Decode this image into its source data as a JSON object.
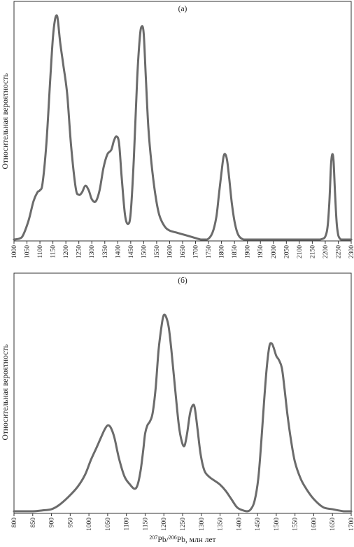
{
  "figure": {
    "xlabel_parts": {
      "sup1": "207",
      "pb1": "Pb/",
      "sup2": "206",
      "pb2": "Pb, млн лет"
    }
  },
  "chart_data": [
    {
      "type": "line",
      "panel_label": "(а)",
      "ylabel": "Относительная вероятность",
      "xlabel": "",
      "xlim": [
        1000,
        2300
      ],
      "ylim": [
        0,
        1
      ],
      "grid": false,
      "ticks": [
        1000,
        1050,
        1100,
        1150,
        1200,
        1250,
        1300,
        1350,
        1400,
        1450,
        1500,
        1550,
        1600,
        1650,
        1700,
        1750,
        1800,
        1850,
        1900,
        1950,
        2000,
        2050,
        2100,
        2150,
        2200,
        2250,
        2300
      ],
      "series": [
        {
          "x": [
            1000,
            1030,
            1055,
            1075,
            1090,
            1100,
            1110,
            1125,
            1140,
            1150,
            1158,
            1165,
            1170,
            1178,
            1190,
            1205,
            1220,
            1238,
            1250,
            1262,
            1275,
            1288,
            1300,
            1315,
            1330,
            1345,
            1360,
            1375,
            1385,
            1395,
            1405,
            1415,
            1428,
            1440,
            1450,
            1462,
            1475,
            1485,
            1492,
            1500,
            1508,
            1518,
            1530,
            1545,
            1560,
            1580,
            1600,
            1630,
            1660,
            1690,
            1720,
            1745,
            1765,
            1780,
            1790,
            1800,
            1808,
            1815,
            1822,
            1830,
            1840,
            1852,
            1865,
            1885,
            1920,
            2000,
            2100,
            2180,
            2205,
            2215,
            2222,
            2227,
            2232,
            2238,
            2246,
            2260,
            2300
          ],
          "y": [
            0,
            0.01,
            0.08,
            0.17,
            0.21,
            0.22,
            0.25,
            0.43,
            0.72,
            0.9,
            0.98,
            1.0,
            0.97,
            0.88,
            0.78,
            0.65,
            0.42,
            0.23,
            0.2,
            0.21,
            0.24,
            0.22,
            0.18,
            0.17,
            0.22,
            0.32,
            0.38,
            0.4,
            0.44,
            0.46,
            0.43,
            0.28,
            0.11,
            0.07,
            0.12,
            0.36,
            0.72,
            0.9,
            0.95,
            0.92,
            0.73,
            0.5,
            0.34,
            0.2,
            0.11,
            0.06,
            0.04,
            0.03,
            0.02,
            0.01,
            0.0,
            0.0,
            0.03,
            0.1,
            0.2,
            0.3,
            0.37,
            0.38,
            0.35,
            0.27,
            0.16,
            0.07,
            0.02,
            0.0,
            0.0,
            0.0,
            0.0,
            0.0,
            0.03,
            0.15,
            0.33,
            0.38,
            0.35,
            0.2,
            0.05,
            0.0,
            0.0
          ]
        }
      ]
    },
    {
      "type": "line",
      "panel_label": "(б)",
      "ylabel": "Относительная вероятность",
      "xlabel": "²⁰⁷Pb/²⁰⁶Pb, млн лет",
      "xlim": [
        800,
        1700
      ],
      "ylim": [
        0,
        1
      ],
      "grid": false,
      "ticks": [
        800,
        850,
        900,
        950,
        1000,
        1050,
        1100,
        1150,
        1200,
        1250,
        1300,
        1350,
        1400,
        1450,
        1500,
        1550,
        1600,
        1650,
        1700
      ],
      "series": [
        {
          "x": [
            800,
            850,
            880,
            900,
            920,
            945,
            970,
            990,
            1005,
            1020,
            1032,
            1042,
            1050,
            1058,
            1068,
            1080,
            1095,
            1110,
            1122,
            1130,
            1138,
            1145,
            1150,
            1156,
            1163,
            1170,
            1178,
            1186,
            1195,
            1200,
            1206,
            1213,
            1220,
            1230,
            1240,
            1248,
            1255,
            1262,
            1270,
            1278,
            1283,
            1290,
            1298,
            1308,
            1320,
            1335,
            1350,
            1365,
            1380,
            1395,
            1410,
            1422,
            1432,
            1442,
            1452,
            1460,
            1468,
            1475,
            1482,
            1488,
            1493,
            1500,
            1507,
            1515,
            1522,
            1530,
            1540,
            1550,
            1565,
            1580,
            1600,
            1625,
            1650,
            1680,
            1700
          ],
          "y": [
            0,
            0,
            0.005,
            0.01,
            0.03,
            0.07,
            0.12,
            0.18,
            0.25,
            0.31,
            0.36,
            0.4,
            0.42,
            0.41,
            0.36,
            0.26,
            0.17,
            0.13,
            0.11,
            0.13,
            0.2,
            0.3,
            0.38,
            0.42,
            0.44,
            0.48,
            0.6,
            0.79,
            0.92,
            0.96,
            0.95,
            0.9,
            0.79,
            0.6,
            0.42,
            0.34,
            0.32,
            0.38,
            0.48,
            0.52,
            0.5,
            0.4,
            0.28,
            0.2,
            0.17,
            0.15,
            0.13,
            0.1,
            0.06,
            0.02,
            0.005,
            0.0,
            0.01,
            0.05,
            0.16,
            0.34,
            0.55,
            0.71,
            0.81,
            0.82,
            0.8,
            0.76,
            0.74,
            0.7,
            0.6,
            0.47,
            0.34,
            0.24,
            0.16,
            0.11,
            0.06,
            0.02,
            0.01,
            0.0,
            0.0
          ]
        }
      ]
    }
  ]
}
